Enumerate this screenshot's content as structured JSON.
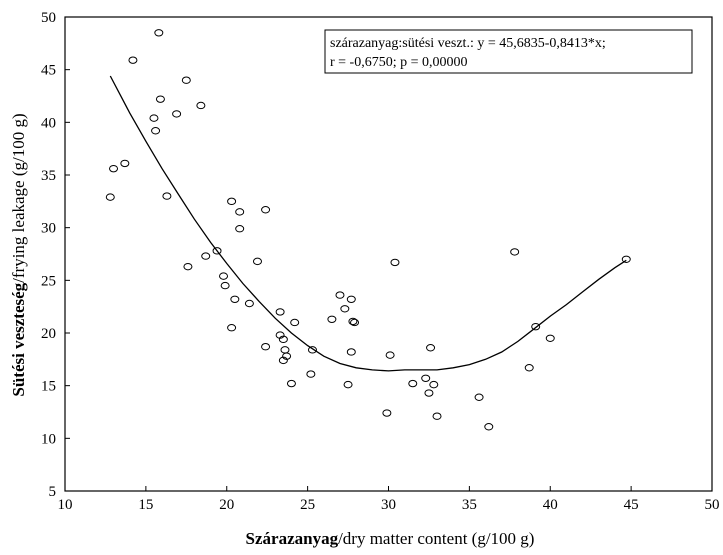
{
  "chart_data": {
    "type": "scatter",
    "xlabel_bold": "Szárazanyag",
    "xlabel_rest": "/dry matter content (g/100 g)",
    "ylabel_bold": "Sütési veszteség",
    "ylabel_rest": "/frying leakage (g/100 g)",
    "xlim": [
      10,
      50
    ],
    "ylim": [
      5,
      50
    ],
    "x_ticks": [
      10,
      15,
      20,
      25,
      30,
      35,
      40,
      45,
      50
    ],
    "y_ticks": [
      5,
      10,
      15,
      20,
      25,
      30,
      35,
      40,
      45,
      50
    ],
    "grid": false,
    "legend": {
      "placement": "top-right",
      "line1": "szárazanyag:sütési veszt.:  y = 45,6835-0,8413*x;",
      "line2": "r = -0,6750; p = 0,00000"
    },
    "marker": "circle",
    "points": [
      {
        "x": 12.8,
        "y": 32.9
      },
      {
        "x": 13.0,
        "y": 35.6
      },
      {
        "x": 13.7,
        "y": 36.1
      },
      {
        "x": 14.2,
        "y": 45.9
      },
      {
        "x": 15.5,
        "y": 40.4
      },
      {
        "x": 15.6,
        "y": 39.2
      },
      {
        "x": 15.8,
        "y": 48.5
      },
      {
        "x": 15.9,
        "y": 42.2
      },
      {
        "x": 16.3,
        "y": 33.0
      },
      {
        "x": 16.9,
        "y": 40.8
      },
      {
        "x": 17.5,
        "y": 44.0
      },
      {
        "x": 17.6,
        "y": 26.3
      },
      {
        "x": 18.4,
        "y": 41.6
      },
      {
        "x": 18.7,
        "y": 27.3
      },
      {
        "x": 19.4,
        "y": 27.8
      },
      {
        "x": 19.8,
        "y": 25.4
      },
      {
        "x": 19.9,
        "y": 24.5
      },
      {
        "x": 20.3,
        "y": 32.5
      },
      {
        "x": 20.3,
        "y": 20.5
      },
      {
        "x": 20.5,
        "y": 23.2
      },
      {
        "x": 20.8,
        "y": 31.5
      },
      {
        "x": 20.8,
        "y": 29.9
      },
      {
        "x": 21.4,
        "y": 22.8
      },
      {
        "x": 21.9,
        "y": 26.8
      },
      {
        "x": 22.4,
        "y": 31.7
      },
      {
        "x": 22.4,
        "y": 18.7
      },
      {
        "x": 23.3,
        "y": 19.8
      },
      {
        "x": 23.3,
        "y": 22.0
      },
      {
        "x": 23.5,
        "y": 19.4
      },
      {
        "x": 23.6,
        "y": 18.4
      },
      {
        "x": 23.5,
        "y": 17.4
      },
      {
        "x": 23.7,
        "y": 17.8
      },
      {
        "x": 24.0,
        "y": 15.2
      },
      {
        "x": 24.2,
        "y": 21.0
      },
      {
        "x": 25.2,
        "y": 16.1
      },
      {
        "x": 25.3,
        "y": 18.4
      },
      {
        "x": 26.5,
        "y": 21.3
      },
      {
        "x": 27.0,
        "y": 23.6
      },
      {
        "x": 27.3,
        "y": 22.3
      },
      {
        "x": 27.5,
        "y": 15.1
      },
      {
        "x": 27.7,
        "y": 23.2
      },
      {
        "x": 27.8,
        "y": 21.1
      },
      {
        "x": 27.9,
        "y": 21.0
      },
      {
        "x": 27.7,
        "y": 18.2
      },
      {
        "x": 29.9,
        "y": 12.4
      },
      {
        "x": 30.1,
        "y": 17.9
      },
      {
        "x": 30.4,
        "y": 26.7
      },
      {
        "x": 31.5,
        "y": 15.2
      },
      {
        "x": 32.3,
        "y": 15.7
      },
      {
        "x": 32.5,
        "y": 14.3
      },
      {
        "x": 32.6,
        "y": 18.6
      },
      {
        "x": 32.8,
        "y": 15.1
      },
      {
        "x": 33.0,
        "y": 12.1
      },
      {
        "x": 35.6,
        "y": 13.9
      },
      {
        "x": 36.2,
        "y": 11.1
      },
      {
        "x": 37.8,
        "y": 27.7
      },
      {
        "x": 38.7,
        "y": 16.7
      },
      {
        "x": 39.1,
        "y": 20.6
      },
      {
        "x": 40.0,
        "y": 19.5
      },
      {
        "x": 44.7,
        "y": 27.0
      }
    ],
    "fit_curve": [
      {
        "x": 12.8,
        "y": 44.4
      },
      {
        "x": 14,
        "y": 40.9
      },
      {
        "x": 15,
        "y": 38.2
      },
      {
        "x": 16,
        "y": 35.6
      },
      {
        "x": 17,
        "y": 33.2
      },
      {
        "x": 18,
        "y": 30.8
      },
      {
        "x": 19,
        "y": 28.6
      },
      {
        "x": 20,
        "y": 26.6
      },
      {
        "x": 21,
        "y": 24.7
      },
      {
        "x": 22,
        "y": 23.0
      },
      {
        "x": 23,
        "y": 21.4
      },
      {
        "x": 24,
        "y": 20.0
      },
      {
        "x": 25,
        "y": 18.8
      },
      {
        "x": 26,
        "y": 17.8
      },
      {
        "x": 27,
        "y": 17.1
      },
      {
        "x": 28,
        "y": 16.7
      },
      {
        "x": 29,
        "y": 16.5
      },
      {
        "x": 30,
        "y": 16.4
      },
      {
        "x": 31,
        "y": 16.5
      },
      {
        "x": 32,
        "y": 16.5
      },
      {
        "x": 33,
        "y": 16.5
      },
      {
        "x": 34,
        "y": 16.7
      },
      {
        "x": 35,
        "y": 17.0
      },
      {
        "x": 36,
        "y": 17.5
      },
      {
        "x": 37,
        "y": 18.2
      },
      {
        "x": 38,
        "y": 19.2
      },
      {
        "x": 39,
        "y": 20.4
      },
      {
        "x": 40,
        "y": 21.6
      },
      {
        "x": 41,
        "y": 22.7
      },
      {
        "x": 42,
        "y": 23.9
      },
      {
        "x": 43,
        "y": 25.1
      },
      {
        "x": 44,
        "y": 26.2
      },
      {
        "x": 44.7,
        "y": 26.9
      }
    ]
  }
}
